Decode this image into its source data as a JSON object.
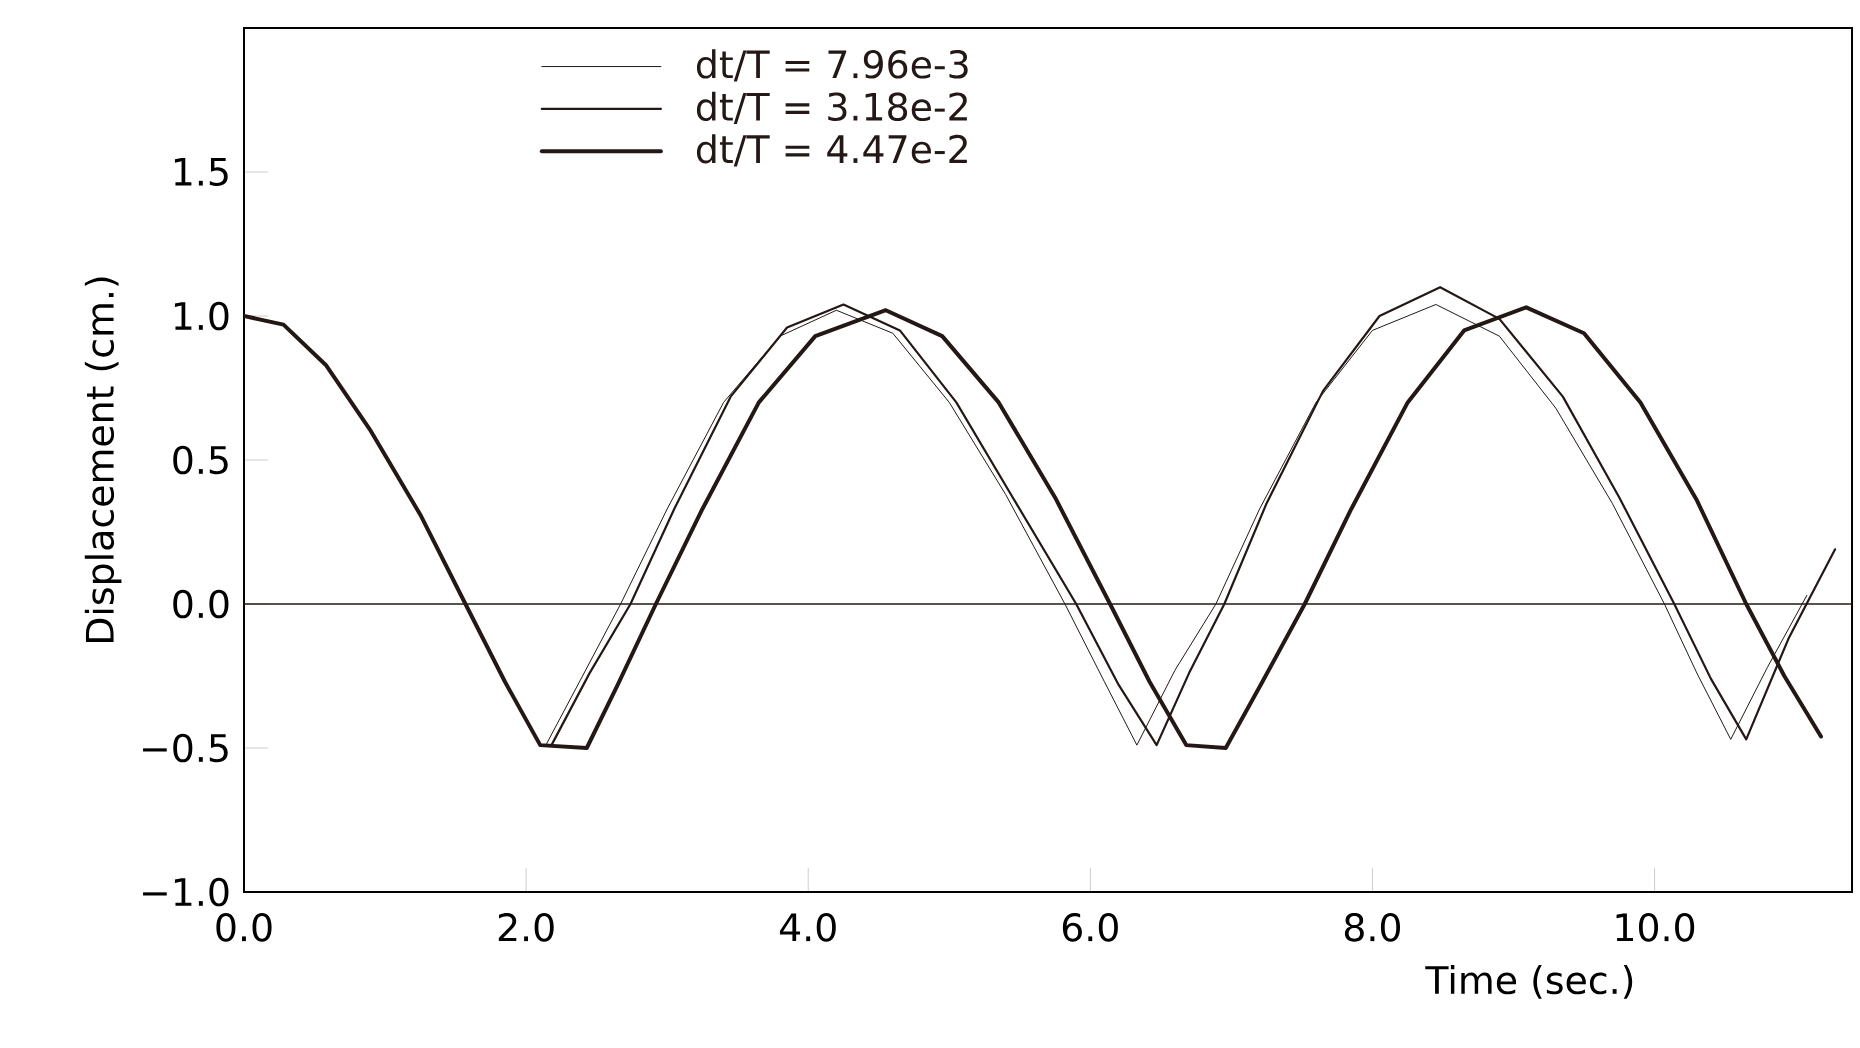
{
  "chart_data": {
    "type": "line",
    "xlabel": "Time (sec.)",
    "ylabel": "Displacement (cm.)",
    "xlim": [
      0,
      11.4
    ],
    "ylim": [
      -1.0,
      2.0
    ],
    "xticks": [
      {
        "value": 0,
        "label": "0.0"
      },
      {
        "value": 2,
        "label": "2.0"
      },
      {
        "value": 4,
        "label": "4.0"
      },
      {
        "value": 6,
        "label": "6.0"
      },
      {
        "value": 8,
        "label": "8.0"
      },
      {
        "value": 10,
        "label": "10.0"
      }
    ],
    "yticks": [
      {
        "value": -1,
        "label": "−1.0"
      },
      {
        "value": -0.5,
        "label": "−0.5"
      },
      {
        "value": 0,
        "label": "0.0"
      },
      {
        "value": 0.5,
        "label": "0.5"
      },
      {
        "value": 1,
        "label": "1.0"
      },
      {
        "value": 1.5,
        "label": "1.5"
      }
    ],
    "legend": "top",
    "grid": false,
    "marker": "none",
    "line_style": "solid",
    "ref_lines": [
      {
        "axis": "y",
        "value": 0,
        "color": "#231815"
      }
    ],
    "series": [
      {
        "name": "dt/T = 7.96e-3",
        "color": "#231815",
        "x": [
          0,
          0.28,
          0.58,
          0.9,
          1.25,
          1.57,
          1.85,
          2.1,
          2.14,
          2.4,
          2.67,
          3.0,
          3.4,
          3.8,
          4.2,
          4.6,
          5.0,
          5.4,
          5.82,
          6.1,
          6.33,
          6.6,
          6.89,
          7.2,
          7.6,
          8.0,
          8.45,
          8.9,
          9.3,
          9.7,
          10.07,
          10.3,
          10.54,
          10.8,
          11.08
        ],
        "values": [
          1.0,
          0.97,
          0.83,
          0.6,
          0.31,
          0.0,
          -0.27,
          -0.49,
          -0.49,
          -0.25,
          0.0,
          0.33,
          0.7,
          0.93,
          1.02,
          0.94,
          0.7,
          0.38,
          0.0,
          -0.27,
          -0.49,
          -0.23,
          0.0,
          0.33,
          0.7,
          0.95,
          1.04,
          0.93,
          0.68,
          0.35,
          0.0,
          -0.24,
          -0.47,
          -0.22,
          0.03
        ]
      },
      {
        "name": "dt/T = 3.18e-2",
        "color": "#231815",
        "x": [
          0,
          0.28,
          0.58,
          0.9,
          1.25,
          1.57,
          1.85,
          2.1,
          2.18,
          2.45,
          2.74,
          3.05,
          3.45,
          3.85,
          4.25,
          4.65,
          5.05,
          5.45,
          5.9,
          6.2,
          6.47,
          6.7,
          6.95,
          7.25,
          7.65,
          8.05,
          8.48,
          8.9,
          9.35,
          9.75,
          10.14,
          10.4,
          10.65,
          10.95,
          11.28
        ],
        "values": [
          1.0,
          0.97,
          0.83,
          0.6,
          0.31,
          0.0,
          -0.27,
          -0.49,
          -0.49,
          -0.24,
          0.0,
          0.33,
          0.72,
          0.96,
          1.04,
          0.95,
          0.7,
          0.37,
          0.0,
          -0.28,
          -0.49,
          -0.24,
          0.0,
          0.35,
          0.74,
          1.0,
          1.1,
          0.99,
          0.72,
          0.37,
          0.0,
          -0.26,
          -0.47,
          -0.12,
          0.19
        ]
      },
      {
        "name": "dt/T = 4.47e-2",
        "color": "#231815",
        "x": [
          0,
          0.28,
          0.58,
          0.9,
          1.25,
          1.57,
          1.85,
          2.1,
          2.43,
          2.65,
          2.92,
          3.25,
          3.65,
          4.05,
          4.55,
          4.95,
          5.35,
          5.75,
          6.14,
          6.42,
          6.68,
          6.96,
          7.22,
          7.52,
          7.85,
          8.25,
          8.65,
          9.09,
          9.5,
          9.9,
          10.3,
          10.65,
          10.92,
          11.18
        ],
        "values": [
          1.0,
          0.97,
          0.83,
          0.6,
          0.31,
          0.0,
          -0.27,
          -0.49,
          -0.5,
          -0.28,
          0.0,
          0.33,
          0.7,
          0.93,
          1.02,
          0.93,
          0.7,
          0.37,
          0.0,
          -0.27,
          -0.49,
          -0.5,
          -0.27,
          0.0,
          0.33,
          0.7,
          0.95,
          1.03,
          0.94,
          0.7,
          0.36,
          0.0,
          -0.25,
          -0.46
        ]
      }
    ]
  }
}
